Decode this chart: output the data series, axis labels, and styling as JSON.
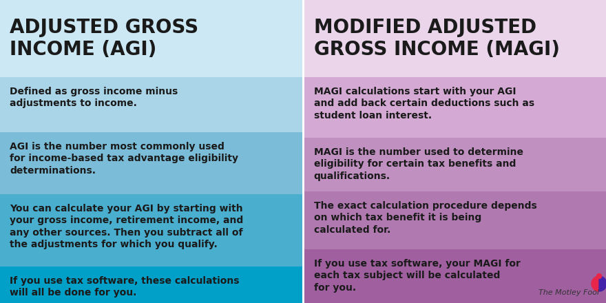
{
  "left_title": "ADJUSTED GROSS\nINCOME (AGI)",
  "right_title": "MODIFIED ADJUSTED\nGROSS INCOME (MAGI)",
  "left_title_bg": "#cce8f4",
  "right_title_bg": "#ead5ea",
  "left_row_colors": [
    "#aad4e8",
    "#7bbdd8",
    "#4aaece",
    "#00a0c8"
  ],
  "right_row_colors": [
    "#d4aad4",
    "#c090c0",
    "#b07ab0",
    "#a060a0"
  ],
  "left_bullets": [
    "Defined as gross income minus\nadjustments to income.",
    "AGI is the number most commonly used\nfor income-based tax advantage eligibility\ndeterminations.",
    "You can calculate your AGI by starting with\nyour gross income, retirement income, and\nany other sources. Then you subtract all of\nthe adjustments for which you qualify.",
    "If you use tax software, these calculations\nwill all be done for you."
  ],
  "right_bullets": [
    "MAGI calculations start with your AGI\nand add back certain deductions such as\nstudent loan interest.",
    "MAGI is the number used to determine\neligibility for certain tax benefits and\nqualifications.",
    "The exact calculation procedure depends\non which tax benefit it is being\ncalculated for.",
    "If you use tax software, your MAGI for\neach tax subject will be calculated\nfor you."
  ],
  "text_color": "#1a1a1a",
  "divider_color": "#ffffff",
  "watermark": "The Motley Fool",
  "watermark_color": "#333333",
  "title_fontsize": 20,
  "body_fontsize": 10.0,
  "fig_width": 8.8,
  "fig_height": 4.4,
  "dpi": 100
}
